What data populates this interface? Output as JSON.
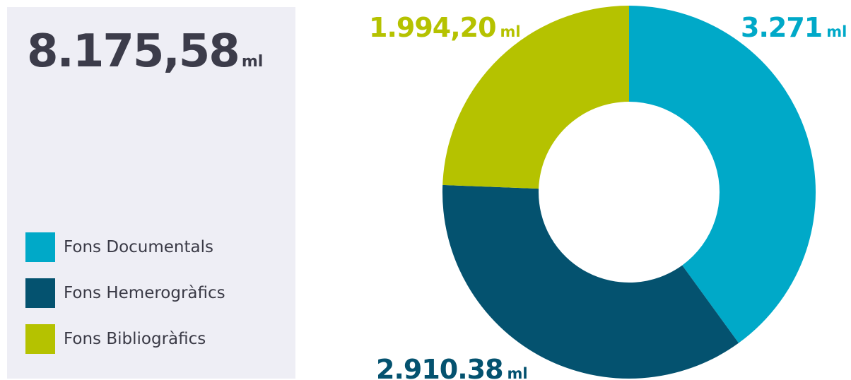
{
  "total": {
    "value": "8.175,58",
    "unit": "ml"
  },
  "legend": [
    {
      "label": "Fons Documentals",
      "color": "#00a9c8"
    },
    {
      "label": "Fons Hemerogràfics",
      "color": "#04526f"
    },
    {
      "label": "Fons Bibliogràfics",
      "color": "#b5c200"
    }
  ],
  "chart_data": {
    "type": "pie",
    "donut": true,
    "title": "",
    "unit": "ml",
    "categories": [
      "Fons Documentals",
      "Fons Hemerogràfics",
      "Fons Bibliogràfics"
    ],
    "values": [
      3271,
      2910.38,
      1994.2
    ],
    "value_labels": [
      "3.271",
      "2.910.38",
      "1.994,20"
    ],
    "colors": [
      "#00a9c8",
      "#04526f",
      "#b5c200"
    ],
    "legend": "left"
  }
}
